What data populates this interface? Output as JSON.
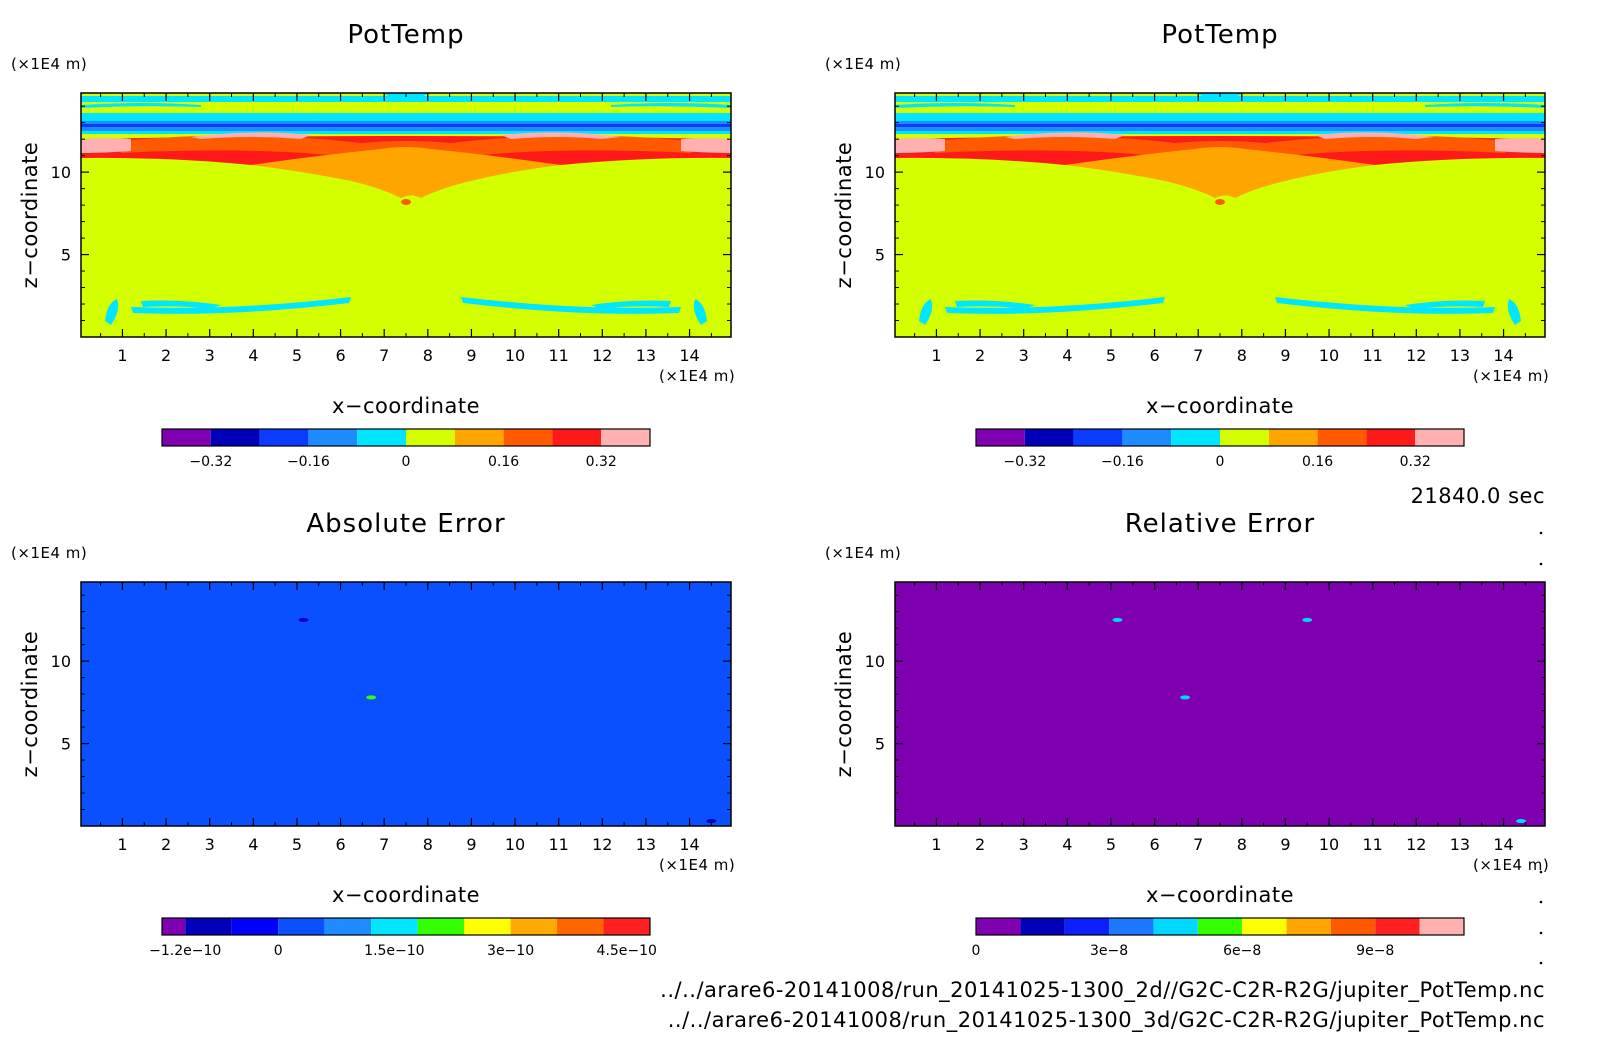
{
  "time_label": "21840.0 sec",
  "footer": {
    "file1": "../../arare6-20141008/run_20141025-1300_2d//G2C-C2R-R2G/jupiter_PotTemp.nc",
    "file2": "../../arare6-20141008/run_20141025-1300_3d/G2C-C2R-R2G/jupiter_PotTemp.nc"
  },
  "chart_data": [
    {
      "type": "heatmap",
      "title": "PotTemp",
      "xlabel": "x−coordinate",
      "ylabel": "z−coordinate",
      "x_unit": "(×1E4 m)",
      "z_unit": "(×1E4 m)",
      "xlim": [
        0.05,
        14.95
      ],
      "ylim": [
        0,
        14.8
      ],
      "x_ticks": [
        "1",
        "2",
        "3",
        "4",
        "5",
        "6",
        "7",
        "8",
        "9",
        "10",
        "11",
        "12",
        "13",
        "14"
      ],
      "z_ticks": [
        "5",
        "10"
      ],
      "colorbar": {
        "levels": [
          -0.4,
          -0.32,
          -0.24,
          -0.16,
          -0.08,
          0,
          0.08,
          0.16,
          0.24,
          0.32,
          0.4
        ],
        "colors": [
          "#7f00b0",
          "#0000b8",
          "#0a3cff",
          "#1e8cff",
          "#00e6ff",
          "#d4ff00",
          "#ffa500",
          "#ff5a00",
          "#ff1a1a",
          "#ffb0b0"
        ],
        "tick_labels": [
          "−0.32",
          "−0.16",
          "0",
          "0.16",
          "0.32"
        ],
        "tick_values": [
          -0.32,
          -0.16,
          0,
          0.16,
          0.32
        ]
      },
      "background_value": 0.04,
      "features": [
        {
          "desc": "upper warm layer",
          "value": 0.28
        },
        {
          "desc": "central warm plume",
          "value": 0.12
        },
        {
          "desc": "cold band near top",
          "value": -0.12
        },
        {
          "desc": "cool arcs near bottom",
          "value": -0.04
        }
      ]
    },
    {
      "type": "heatmap",
      "title": "PotTemp",
      "xlabel": "x−coordinate",
      "ylabel": "z−coordinate",
      "x_unit": "(×1E4 m)",
      "z_unit": "(×1E4 m)",
      "xlim": [
        0.05,
        14.95
      ],
      "ylim": [
        0,
        14.8
      ],
      "x_ticks": [
        "1",
        "2",
        "3",
        "4",
        "5",
        "6",
        "7",
        "8",
        "9",
        "10",
        "11",
        "12",
        "13",
        "14"
      ],
      "z_ticks": [
        "5",
        "10"
      ],
      "colorbar": {
        "levels": [
          -0.4,
          -0.32,
          -0.24,
          -0.16,
          -0.08,
          0,
          0.08,
          0.16,
          0.24,
          0.32,
          0.4
        ],
        "colors": [
          "#7f00b0",
          "#0000b8",
          "#0a3cff",
          "#1e8cff",
          "#00e6ff",
          "#d4ff00",
          "#ffa500",
          "#ff5a00",
          "#ff1a1a",
          "#ffb0b0"
        ],
        "tick_labels": [
          "−0.32",
          "−0.16",
          "0",
          "0.16",
          "0.32"
        ],
        "tick_values": [
          -0.32,
          -0.16,
          0,
          0.16,
          0.32
        ]
      },
      "background_value": 0.04,
      "features": [
        {
          "desc": "upper warm layer",
          "value": 0.28
        },
        {
          "desc": "central warm plume",
          "value": 0.12
        },
        {
          "desc": "cold band near top",
          "value": -0.12
        },
        {
          "desc": "cool arcs near bottom",
          "value": -0.04
        }
      ]
    },
    {
      "type": "heatmap",
      "title": "Absolute Error",
      "xlabel": "x−coordinate",
      "ylabel": "z−coordinate",
      "x_unit": "(×1E4 m)",
      "z_unit": "(×1E4 m)",
      "xlim": [
        0.05,
        14.95
      ],
      "ylim": [
        0,
        14.8
      ],
      "x_ticks": [
        "1",
        "2",
        "3",
        "4",
        "5",
        "6",
        "7",
        "8",
        "9",
        "10",
        "11",
        "12",
        "13",
        "14"
      ],
      "z_ticks": [
        "5",
        "10"
      ],
      "colorbar": {
        "levels": [
          -1.5e-10,
          -1.2e-10,
          -6e-11,
          0,
          6e-11,
          1.2e-10,
          1.8e-10,
          2.4e-10,
          3e-10,
          3.6e-10,
          4.2e-10,
          4.8e-10
        ],
        "colors": [
          "#7f00b0",
          "#0000b8",
          "#0000ff",
          "#0a50ff",
          "#1e8cff",
          "#00e6ff",
          "#33ff00",
          "#ffff00",
          "#ffaa00",
          "#ff6600",
          "#ff2020",
          "#ffb0b0"
        ],
        "tick_labels": [
          "−1.2e−10",
          "0",
          "1.5e−10",
          "3e−10",
          "4.5e−10"
        ],
        "tick_values": [
          -1.2e-10,
          0,
          1.5e-10,
          3e-10,
          4.5e-10
        ]
      },
      "background_value": 0,
      "features": [
        {
          "desc": "small negative spot",
          "x": 5.15,
          "z": 12.5,
          "value": -1e-10
        },
        {
          "desc": "small positive spot",
          "x": 6.7,
          "z": 7.8,
          "value": 2e-10
        },
        {
          "desc": "small negative spot",
          "x": 14.5,
          "z": 0.3,
          "value": -1e-10
        }
      ]
    },
    {
      "type": "heatmap",
      "title": "Relative Error",
      "xlabel": "x−coordinate",
      "ylabel": "z−coordinate",
      "x_unit": "(×1E4 m)",
      "z_unit": "(×1E4 m)",
      "xlim": [
        0.05,
        14.95
      ],
      "ylim": [
        0,
        14.8
      ],
      "x_ticks": [
        "1",
        "2",
        "3",
        "4",
        "5",
        "6",
        "7",
        "8",
        "9",
        "10",
        "11",
        "12",
        "13",
        "14"
      ],
      "z_ticks": [
        "5",
        "10"
      ],
      "colorbar": {
        "levels": [
          0,
          1e-08,
          2e-08,
          3e-08,
          4e-08,
          5e-08,
          6e-08,
          7e-08,
          8e-08,
          9e-08,
          1e-07,
          1.1e-07
        ],
        "colors": [
          "#7f00b0",
          "#0000b8",
          "#0a20ff",
          "#1e78ff",
          "#00d8ff",
          "#33ff00",
          "#ffff00",
          "#ffa500",
          "#ff5a00",
          "#ff2020",
          "#ffb0b0"
        ],
        "tick_labels": [
          "0",
          "3e−8",
          "6e−8",
          "9e−8"
        ],
        "tick_values": [
          0,
          3e-08,
          6e-08,
          9e-08
        ]
      },
      "background_value": 0,
      "features": [
        {
          "desc": "small positive spot",
          "x": 5.15,
          "z": 12.5,
          "value": 4e-08
        },
        {
          "desc": "small positive spot",
          "x": 9.5,
          "z": 12.5,
          "value": 4e-08
        },
        {
          "desc": "small positive spot",
          "x": 6.7,
          "z": 7.8,
          "value": 4e-08
        },
        {
          "desc": "small positive spot",
          "x": 14.4,
          "z": 0.3,
          "value": 4e-08
        }
      ]
    }
  ]
}
